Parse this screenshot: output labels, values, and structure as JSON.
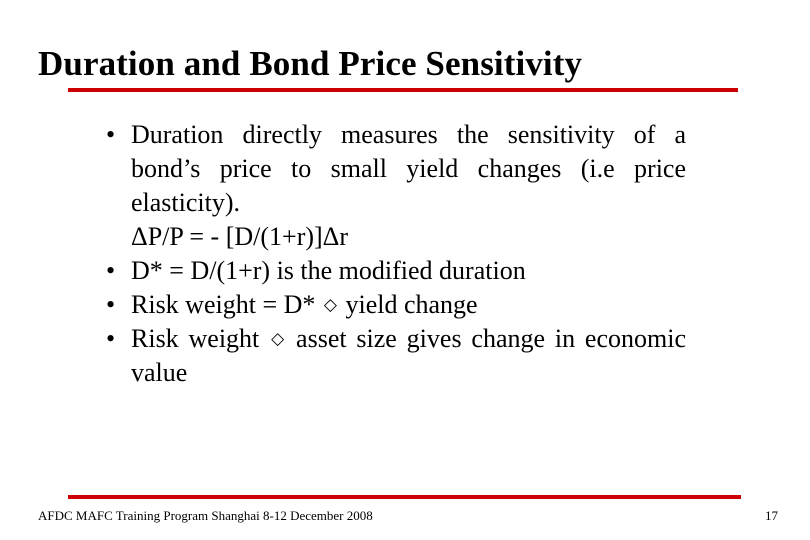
{
  "slide": {
    "title": "Duration and Bond Price Sensitivity",
    "bullets": [
      {
        "marker": "•",
        "text": "Duration directly measures the sensitivity of a bond’s price to small yield changes (i.e price elasticity)."
      },
      {
        "text": "ΔP/P = - [D/(1+r)]Δr"
      },
      {
        "marker": "•",
        "text": "D* = D/(1+r) is the modified duration"
      },
      {
        "marker": "•",
        "text_before": "Risk weight = D* ",
        "icon": "diamond-icon",
        "text_after": " yield change"
      },
      {
        "marker": "•",
        "text_before": "Risk weight ",
        "icon": "diamond-icon",
        "text_after": " asset size gives change in economic value"
      }
    ],
    "footer": "AFDC MAFC Training Program Shanghai 8-12 December 2008",
    "page_number": "17",
    "colors": {
      "rule": "#cc0000",
      "text": "#000000",
      "background": "#ffffff"
    }
  }
}
